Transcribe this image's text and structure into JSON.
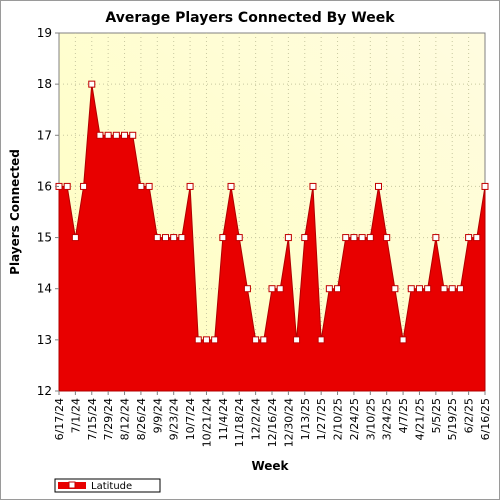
{
  "chart_data": {
    "type": "area",
    "title": "Average Players Connected By Week",
    "xlabel": "Week",
    "ylabel": "Players Connected",
    "ylim": [
      12,
      19
    ],
    "yticks": [
      12,
      13,
      14,
      15,
      16,
      17,
      18,
      19
    ],
    "grid": true,
    "legend_position": "bottom-left",
    "categories": [
      "6/17/24",
      "6/24/24",
      "7/1/24",
      "7/8/24",
      "7/15/24",
      "7/22/24",
      "7/29/24",
      "8/5/24",
      "8/12/24",
      "8/19/24",
      "8/26/24",
      "9/2/24",
      "9/9/24",
      "9/16/24",
      "9/23/24",
      "9/30/24",
      "10/7/24",
      "10/14/24",
      "10/21/24",
      "10/28/24",
      "11/4/24",
      "11/11/24",
      "11/18/24",
      "11/25/24",
      "12/2/24",
      "12/9/24",
      "12/16/24",
      "12/23/24",
      "12/30/24",
      "1/6/25",
      "1/13/25",
      "1/20/25",
      "1/27/25",
      "2/3/25",
      "2/10/25",
      "2/17/25",
      "2/24/25",
      "3/3/25",
      "3/10/25",
      "3/17/25",
      "3/24/25",
      "3/31/25",
      "4/7/25",
      "4/14/25",
      "4/21/25",
      "4/28/25",
      "5/5/25",
      "5/12/25",
      "5/19/25",
      "5/26/25",
      "6/2/25",
      "6/9/25",
      "6/16/25"
    ],
    "visible_tick_labels": [
      "6/17/24",
      "7/1/24",
      "7/15/24",
      "7/29/24",
      "8/12/24",
      "8/26/24",
      "9/9/24",
      "9/23/24",
      "10/7/24",
      "10/21/24",
      "11/4/24",
      "11/18/24",
      "12/2/24",
      "12/16/24",
      "12/30/24",
      "1/13/25",
      "1/27/25",
      "2/10/25",
      "2/24/25",
      "3/10/25",
      "3/24/25",
      "4/7/25",
      "4/21/25",
      "5/5/25",
      "5/19/25",
      "6/2/25",
      "6/16/25"
    ],
    "series": [
      {
        "name": "Latitude",
        "color": "#e80000",
        "values": [
          16,
          16,
          15,
          16,
          18,
          17,
          17,
          17,
          17,
          17,
          16,
          16,
          15,
          15,
          15,
          15,
          16,
          13,
          13,
          13,
          15,
          16,
          15,
          14,
          13,
          13,
          14,
          14,
          15,
          13,
          15,
          16,
          13,
          14,
          14,
          15,
          15,
          15,
          15,
          16,
          15,
          14,
          13,
          14,
          14,
          14,
          15,
          14,
          14,
          14,
          15,
          15,
          16
        ]
      }
    ]
  },
  "colors": {
    "plot_bg_top": "#fffce0",
    "plot_bg_bottom": "#ffffbf",
    "area_fill": "#e80000",
    "marker_fill": "#ffffff",
    "marker_stroke": "#c00000"
  }
}
